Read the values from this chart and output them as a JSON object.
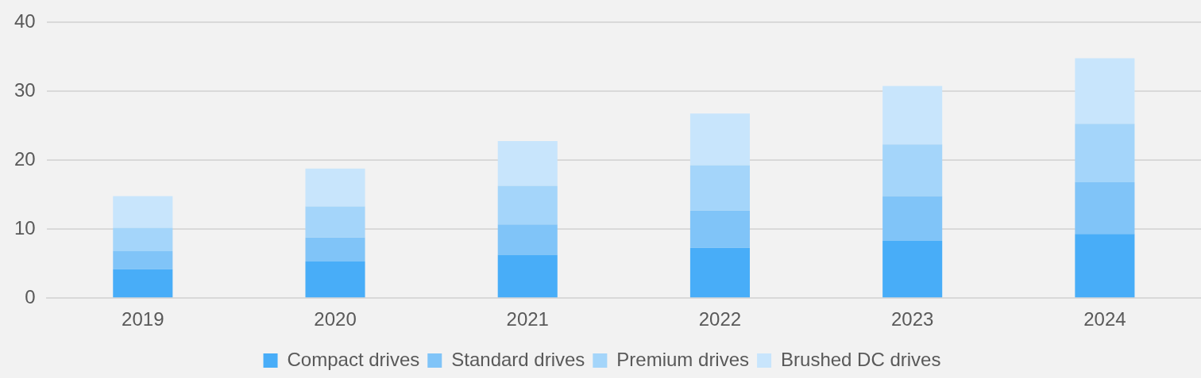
{
  "chart_data": {
    "type": "bar",
    "stacked": true,
    "categories": [
      "2019",
      "2020",
      "2021",
      "2022",
      "2023",
      "2024"
    ],
    "series": [
      {
        "name": "Compact drives",
        "color": "#48adf8",
        "values": [
          4.2,
          5.3,
          6.3,
          7.3,
          8.3,
          9.3
        ]
      },
      {
        "name": "Standard drives",
        "color": "#80c4f8",
        "values": [
          2.6,
          3.5,
          4.4,
          5.4,
          6.5,
          7.5
        ]
      },
      {
        "name": "Premium drives",
        "color": "#a4d5fa",
        "values": [
          3.4,
          4.5,
          5.6,
          6.6,
          7.5,
          8.5
        ]
      },
      {
        "name": "Brushed DC drives",
        "color": "#c8e5fc",
        "values": [
          4.6,
          5.5,
          6.5,
          7.5,
          8.5,
          9.5
        ]
      }
    ],
    "ylim": [
      0,
      40
    ],
    "yticks": [
      0,
      10,
      20,
      30,
      40
    ],
    "grid": "y",
    "legend": "bottom"
  }
}
